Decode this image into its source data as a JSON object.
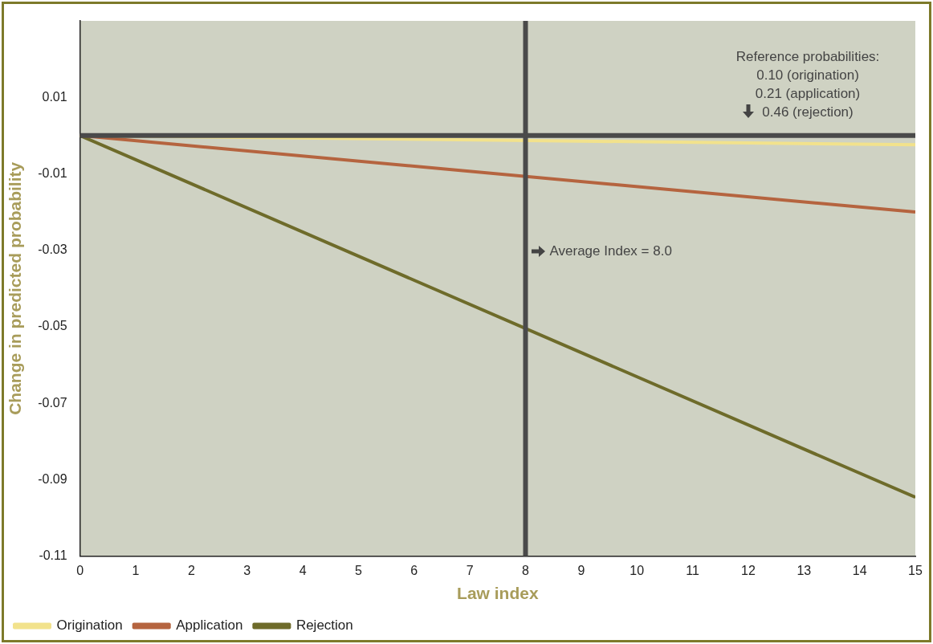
{
  "chart_data": {
    "type": "line",
    "xlabel": "Law index",
    "ylabel": "Change in predicted probability",
    "x": [
      0,
      15
    ],
    "series": [
      {
        "name": "Origination",
        "color": "#f2e28c",
        "values": [
          0,
          -0.0024
        ]
      },
      {
        "name": "Application",
        "color": "#b5643f",
        "values": [
          0,
          -0.02
        ]
      },
      {
        "name": "Rejection",
        "color": "#6e6b2a",
        "values": [
          0,
          -0.0946
        ]
      }
    ],
    "xlim": [
      0,
      15
    ],
    "xticks": [
      0,
      1,
      2,
      3,
      4,
      5,
      6,
      7,
      8,
      9,
      10,
      11,
      12,
      13,
      14,
      15
    ],
    "ylim": [
      -0.11,
      0.03
    ],
    "yticks": [
      0.01,
      -0.01,
      -0.03,
      -0.05,
      -0.07,
      -0.09,
      -0.11
    ],
    "ref_lines": [
      {
        "axis": "x",
        "value": 8,
        "label": "Average Index = 8.0",
        "color": "#4a4a4a"
      },
      {
        "axis": "y",
        "value": 0,
        "color": "#4a4a4a"
      }
    ],
    "annotations": [
      "Reference probabilities:\n0.10 (origination)\n0.21 (application)\n0.46 (rejection)"
    ],
    "grid": false,
    "legend": "bottom left",
    "marker": "none",
    "line_style": "solid"
  }
}
